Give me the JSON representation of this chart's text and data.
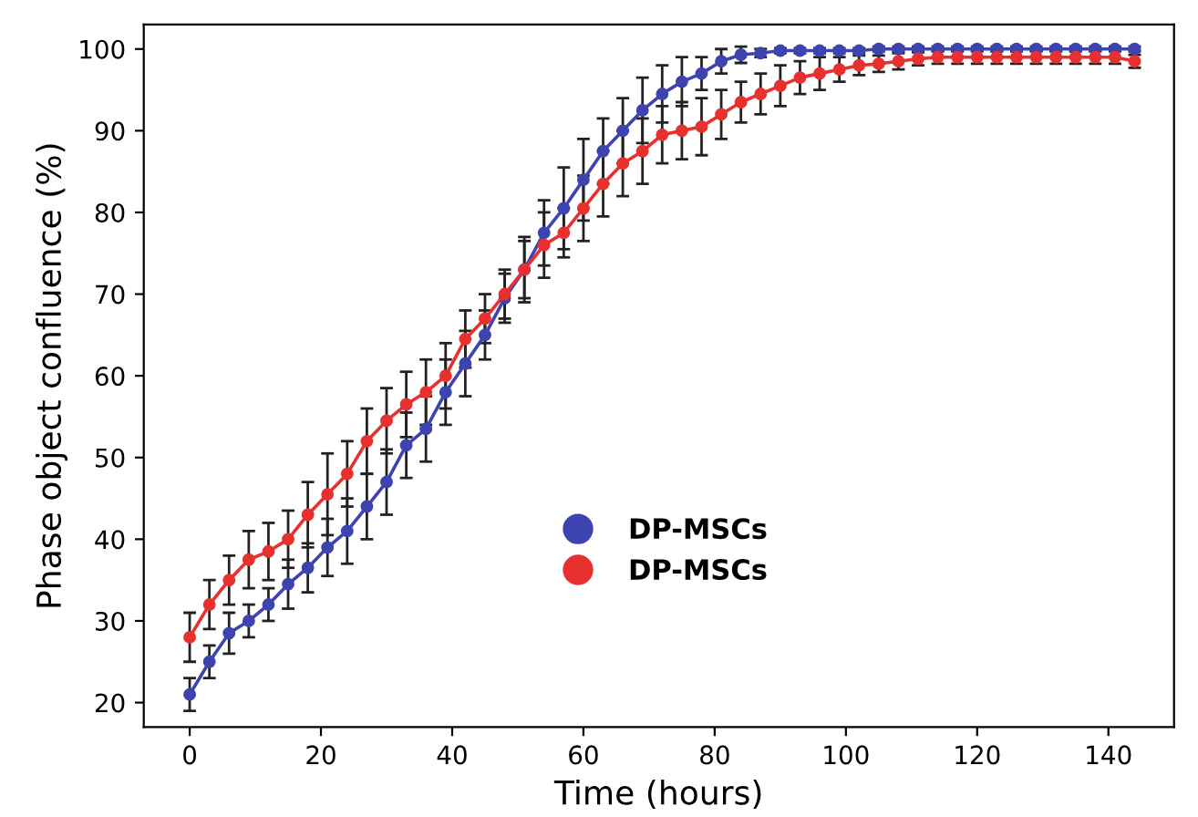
{
  "chart_data": {
    "type": "line",
    "xlabel": "Time (hours)",
    "ylabel": "Phase object confluence (%)",
    "x": [
      0,
      3,
      6,
      9,
      12,
      15,
      18,
      21,
      24,
      27,
      30,
      33,
      36,
      39,
      42,
      45,
      48,
      51,
      54,
      57,
      60,
      63,
      66,
      69,
      72,
      75,
      78,
      81,
      84,
      87,
      90,
      93,
      96,
      99,
      102,
      105,
      108,
      111,
      114,
      117,
      120,
      123,
      126,
      129,
      132,
      135,
      138,
      141,
      144
    ],
    "series": [
      {
        "name": "DP-MSCs",
        "color": "#3d44b0",
        "values": [
          21,
          25,
          28.5,
          30,
          32,
          34.5,
          36.5,
          39,
          41,
          44,
          47,
          51.5,
          53.5,
          58,
          61.5,
          65,
          69.5,
          73,
          77.5,
          80.5,
          84,
          87.5,
          90,
          92.5,
          94.5,
          96,
          97,
          98.5,
          99.3,
          99.5,
          99.8,
          99.8,
          99.8,
          99.8,
          99.8,
          100,
          100,
          100,
          100,
          100,
          100,
          100,
          100,
          100,
          100,
          100,
          100,
          100,
          100
        ],
        "errors": [
          2,
          2,
          2.5,
          2,
          2,
          3,
          3,
          3.5,
          4,
          4,
          4,
          4,
          4,
          4,
          4,
          3,
          3,
          3.5,
          4,
          5,
          5,
          4,
          4,
          4,
          3.5,
          3,
          2,
          1.5,
          1,
          0.5,
          0.3,
          0.3,
          0.3,
          0.3,
          0.3,
          0.3,
          0.3,
          0.3,
          0.3,
          0.3,
          0.3,
          0.3,
          0.3,
          0.3,
          0.3,
          0.3,
          0.3,
          0.3,
          0.3
        ]
      },
      {
        "name": "DP-MSCs",
        "color": "#e8302f",
        "values": [
          28,
          32,
          35,
          37.5,
          38.5,
          40,
          43,
          45.5,
          48,
          52,
          54.5,
          56.5,
          58,
          60,
          64.5,
          67,
          70,
          73,
          76,
          77.5,
          80.5,
          83.5,
          86,
          87.5,
          89.5,
          90,
          90.5,
          92,
          93.5,
          94.5,
          95.5,
          96.5,
          97,
          97.5,
          98,
          98.2,
          98.5,
          98.8,
          99,
          99,
          99,
          99,
          99,
          99,
          99,
          99,
          99,
          99,
          98.5
        ],
        "errors": [
          3,
          3,
          3,
          3.5,
          3.5,
          3.5,
          4,
          5,
          4,
          4,
          4,
          4,
          4,
          4,
          3.5,
          3,
          3,
          4,
          4,
          3,
          4,
          4,
          4,
          4,
          3.5,
          3.5,
          3.5,
          3,
          2.5,
          2.5,
          2.5,
          2,
          2,
          1.5,
          1.2,
          1,
          1,
          0.8,
          0.8,
          0.8,
          0.8,
          0.8,
          0.8,
          0.8,
          0.8,
          0.8,
          0.8,
          0.8,
          0.8
        ]
      }
    ],
    "xlim": [
      -7,
      150
    ],
    "xticks": [
      0,
      20,
      40,
      60,
      80,
      100,
      120,
      140
    ],
    "ylim": [
      17,
      103
    ],
    "yticks": [
      20,
      30,
      40,
      50,
      60,
      70,
      80,
      90,
      100
    ],
    "grid": false,
    "legend": "center",
    "marker": "circle",
    "line_style": "solid"
  }
}
